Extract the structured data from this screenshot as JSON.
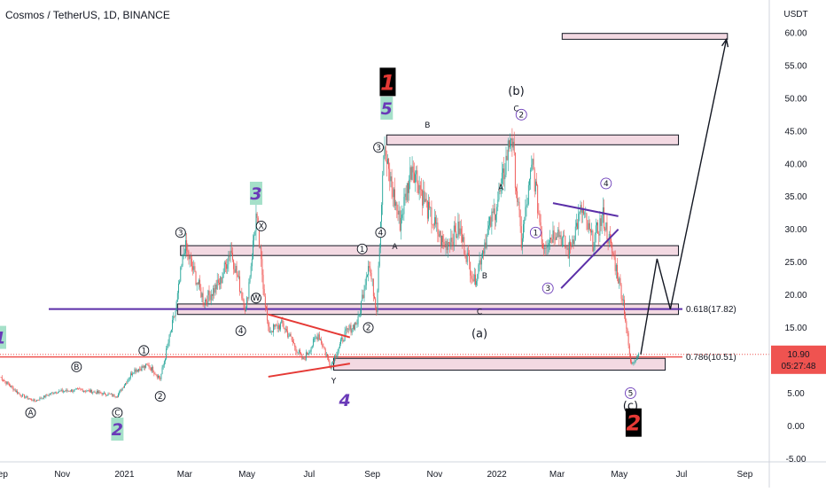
{
  "header": {
    "title": "Cosmos / TetherUS, 1D, BINANCE",
    "currency": "USDT"
  },
  "price_tag": {
    "price": "10.90",
    "countdown": "05:27:48"
  },
  "colors": {
    "up": "#26a69a",
    "down": "#ef5350",
    "zone_fill": "#f3d9e2",
    "fib_purple": "#5b2fa8",
    "fib_red": "#ef5350",
    "support_red": "#e53935",
    "wave_blue": "#6a3ab8",
    "grey_label": "#6b7b8c",
    "badge_green": "#a5e0c9"
  },
  "chart_data": {
    "type": "candlestick",
    "title": "Cosmos / TetherUS, 1D, BINANCE",
    "xlabel": "",
    "ylabel": "USDT",
    "ylim": [
      -5.5,
      65
    ],
    "yticks": [
      -5,
      0,
      5,
      10,
      15,
      20,
      25,
      30,
      35,
      40,
      45,
      50,
      55,
      60
    ],
    "ytick_labels": [
      "-5.00",
      "0.00",
      "5.00",
      "10.00",
      "15.00",
      "20.00",
      "25.00",
      "30.00",
      "35.00",
      "40.00",
      "45.00",
      "50.00",
      "55.00",
      "60.00"
    ],
    "x_range": [
      "2020-09-01",
      "2022-09-25"
    ],
    "xticks": [
      {
        "date": "2020-09-01",
        "label": "Sep"
      },
      {
        "date": "2020-11-01",
        "label": "Nov"
      },
      {
        "date": "2021-01-01",
        "label": "2021"
      },
      {
        "date": "2021-03-01",
        "label": "Mar"
      },
      {
        "date": "2021-05-01",
        "label": "May"
      },
      {
        "date": "2021-07-01",
        "label": "Jul"
      },
      {
        "date": "2021-09-01",
        "label": "Sep"
      },
      {
        "date": "2021-11-01",
        "label": "Nov"
      },
      {
        "date": "2022-01-01",
        "label": "2022"
      },
      {
        "date": "2022-03-01",
        "label": "Mar"
      },
      {
        "date": "2022-05-01",
        "label": "May"
      },
      {
        "date": "2022-07-01",
        "label": "Jul"
      },
      {
        "date": "2022-09-01",
        "label": "Sep"
      }
    ],
    "grid": false,
    "price_path": [
      [
        "2020-09-01",
        7.5
      ],
      [
        "2020-09-20",
        4.8
      ],
      [
        "2020-10-05",
        3.8
      ],
      [
        "2020-10-25",
        5.2
      ],
      [
        "2020-11-20",
        5.5
      ],
      [
        "2020-12-15",
        4.8
      ],
      [
        "2020-12-25",
        4.6
      ],
      [
        "2021-01-10",
        8.5
      ],
      [
        "2021-01-25",
        9.2
      ],
      [
        "2021-02-05",
        7.2
      ],
      [
        "2021-02-20",
        17.5
      ],
      [
        "2021-03-01",
        27.5
      ],
      [
        "2021-03-20",
        19.0
      ],
      [
        "2021-04-05",
        22.0
      ],
      [
        "2021-04-15",
        27.0
      ],
      [
        "2021-04-30",
        17.5
      ],
      [
        "2021-05-10",
        32.0
      ],
      [
        "2021-05-22",
        14.5
      ],
      [
        "2021-06-05",
        15.5
      ],
      [
        "2021-06-25",
        10.0
      ],
      [
        "2021-07-10",
        14.0
      ],
      [
        "2021-07-22",
        9.2
      ],
      [
        "2021-08-05",
        14.0
      ],
      [
        "2021-08-18",
        16.0
      ],
      [
        "2021-08-28",
        25.0
      ],
      [
        "2021-09-05",
        18.0
      ],
      [
        "2021-09-12",
        42.0
      ],
      [
        "2021-09-28",
        31.0
      ],
      [
        "2021-10-10",
        40.0
      ],
      [
        "2021-10-25",
        33.0
      ],
      [
        "2021-11-10",
        27.5
      ],
      [
        "2021-11-25",
        30.0
      ],
      [
        "2021-12-10",
        22.0
      ],
      [
        "2021-12-20",
        28.0
      ],
      [
        "2022-01-05",
        36.0
      ],
      [
        "2022-01-15",
        45.0
      ],
      [
        "2022-01-25",
        28.0
      ],
      [
        "2022-02-05",
        40.0
      ],
      [
        "2022-02-15",
        27.5
      ],
      [
        "2022-03-01",
        30.0
      ],
      [
        "2022-03-12",
        26.5
      ],
      [
        "2022-03-25",
        33.0
      ],
      [
        "2022-04-05",
        28.0
      ],
      [
        "2022-04-15",
        32.0
      ],
      [
        "2022-04-28",
        24.0
      ],
      [
        "2022-05-05",
        19.0
      ],
      [
        "2022-05-12",
        9.5
      ],
      [
        "2022-05-20",
        10.9
      ]
    ],
    "price_line": {
      "value": 10.9,
      "label": "10.90",
      "countdown": "05:27:48"
    },
    "horizontal_lines": [
      {
        "value": 17.82,
        "label": "0.618(17.82)",
        "color": "#5b2fa8"
      },
      {
        "value": 10.51,
        "label": "0.786(10.51)",
        "color": "#ef5350"
      }
    ],
    "zones": [
      {
        "from": "2022-03-06",
        "to": "2022-08-15",
        "low": 59.0,
        "high": 59.9
      },
      {
        "from": "2021-09-15",
        "to": "2022-06-28",
        "low": 42.9,
        "high": 44.4
      },
      {
        "from": "2021-02-25",
        "to": "2022-06-28",
        "low": 26.0,
        "high": 27.5
      },
      {
        "from": "2021-02-22",
        "to": "2022-06-28",
        "low": 17.0,
        "high": 18.6
      },
      {
        "from": "2021-07-25",
        "to": "2022-06-15",
        "low": 8.5,
        "high": 10.3
      }
    ],
    "trend_lines": [
      {
        "from": [
          "2021-05-22",
          17.0
        ],
        "to": [
          "2021-08-10",
          13.5
        ],
        "color": "#e53935"
      },
      {
        "from": [
          "2021-05-22",
          7.5
        ],
        "to": [
          "2021-08-10",
          9.5
        ],
        "color": "#e53935"
      },
      {
        "from": [
          "2022-02-25",
          34.0
        ],
        "to": [
          "2022-04-30",
          32.0
        ],
        "color": "#5b2fa8"
      },
      {
        "from": [
          "2022-03-05",
          21.0
        ],
        "to": [
          "2022-04-30",
          30.0
        ],
        "color": "#5b2fa8"
      }
    ],
    "projection_path": [
      [
        "2022-05-22",
        10.9
      ],
      [
        "2022-06-07",
        25.5
      ],
      [
        "2022-06-20",
        17.8
      ],
      [
        "2022-08-14",
        59.0
      ]
    ],
    "annotations": {
      "circled": [
        {
          "text": "A",
          "x": "2020-10-01",
          "y": 2.0
        },
        {
          "text": "B",
          "x": "2020-11-15",
          "y": 9.0
        },
        {
          "text": "C",
          "x": "2020-12-25",
          "y": 2.0
        },
        {
          "text": "1",
          "x": "2021-01-20",
          "y": 11.5
        },
        {
          "text": "2",
          "x": "2021-02-05",
          "y": 4.5
        },
        {
          "text": "3",
          "x": "2021-02-25",
          "y": 29.5
        },
        {
          "text": "4",
          "x": "2021-04-25",
          "y": 14.5
        },
        {
          "text": "W",
          "x": "2021-05-10",
          "y": 19.5
        },
        {
          "text": "X",
          "x": "2021-05-15",
          "y": 30.5
        },
        {
          "text": "1",
          "x": "2021-08-22",
          "y": 27.0
        },
        {
          "text": "2",
          "x": "2021-08-28",
          "y": 15.0
        },
        {
          "text": "3",
          "x": "2021-09-07",
          "y": 42.5
        },
        {
          "text": "4",
          "x": "2021-09-09",
          "y": 29.5
        }
      ],
      "circled_blue": [
        {
          "text": "2",
          "x": "2022-01-25",
          "y": 47.5
        },
        {
          "text": "1",
          "x": "2022-02-08",
          "y": 29.5
        },
        {
          "text": "3",
          "x": "2022-02-20",
          "y": 21.0
        },
        {
          "text": "4",
          "x": "2022-04-18",
          "y": 37.0
        },
        {
          "text": "5",
          "x": "2022-05-12",
          "y": 5.0
        }
      ],
      "plain": [
        {
          "text": "B",
          "x": "2021-10-25",
          "y": 45.5
        },
        {
          "text": "C",
          "x": "2022-01-20",
          "y": 48.0
        },
        {
          "text": "A",
          "x": "2022-01-05",
          "y": 36.0
        },
        {
          "text": "A",
          "x": "2021-09-23",
          "y": 27.0
        },
        {
          "text": "B",
          "x": "2021-12-20",
          "y": 22.5
        },
        {
          "text": "C",
          "x": "2021-12-15",
          "y": 17.0
        },
        {
          "text": "Y",
          "x": "2021-07-25",
          "y": 6.5
        },
        {
          "text": "(b)",
          "x": "2022-01-20",
          "y": 50.5
        },
        {
          "text": "(a)",
          "x": "2021-12-15",
          "y": 13.5
        },
        {
          "text": "(c)",
          "x": "2022-05-12",
          "y": 2.5
        }
      ],
      "wave_numbers": [
        {
          "text": "1",
          "x": "2020-09-01",
          "y": 13.5,
          "style": "blue-green"
        },
        {
          "text": "2",
          "x": "2020-12-25",
          "y": -0.5,
          "style": "blue-green"
        },
        {
          "text": "3",
          "x": "2021-05-10",
          "y": 35.5,
          "style": "blue-green"
        },
        {
          "text": "4",
          "x": "2021-08-05",
          "y": 4.0,
          "style": "blue-plain"
        },
        {
          "text": "5",
          "x": "2021-09-15",
          "y": 48.5,
          "style": "blue-green"
        },
        {
          "text": "1",
          "x": "2021-09-16",
          "y": 52.5,
          "style": "red-black"
        },
        {
          "text": "2",
          "x": "2022-05-15",
          "y": 0.5,
          "style": "red-black"
        }
      ]
    }
  }
}
